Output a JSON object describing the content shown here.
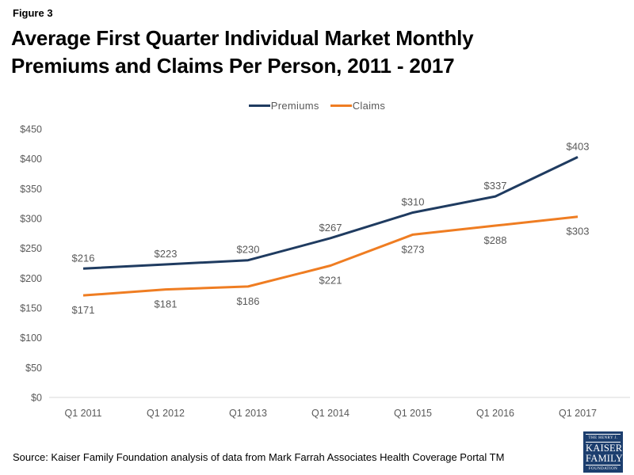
{
  "figure_label": "Figure 3",
  "title": {
    "line1": "Average First Quarter Individual Market Monthly",
    "line2": "Premiums and Claims Per Person, 2011 - 2017"
  },
  "source": "Source: Kaiser Family Foundation analysis of data from Mark Farrah Associates Health Coverage Portal TM",
  "logo": {
    "line1": "THE HENRY J.",
    "line2": "KAISER",
    "line3": "FAMILY",
    "line4": "FOUNDATION",
    "background": "#1C3E6E"
  },
  "chart_data": {
    "type": "line",
    "title": "Average First Quarter Individual Market Monthly Premiums and Claims Per Person, 2011 - 2017",
    "categories": [
      "Q1 2011",
      "Q1 2012",
      "Q1 2013",
      "Q1 2014",
      "Q1 2015",
      "Q1 2016",
      "Q1 2017"
    ],
    "series": [
      {
        "name": "Premiums",
        "color": "#1F3B60",
        "values": [
          216,
          223,
          230,
          267,
          310,
          337,
          403
        ]
      },
      {
        "name": "Claims",
        "color": "#EF7D22",
        "values": [
          171,
          181,
          186,
          221,
          273,
          288,
          303
        ]
      }
    ],
    "ylim": [
      0,
      450
    ],
    "ytick_step": 50,
    "ytick_labels": [
      "$0",
      "$50",
      "$100",
      "$150",
      "$200",
      "$250",
      "$300",
      "$350",
      "$400",
      "$450"
    ],
    "data_label_format": "$",
    "grid": false,
    "legend_position": "top",
    "axis_color": "#D9D9D9",
    "tick_color": "#595959"
  }
}
